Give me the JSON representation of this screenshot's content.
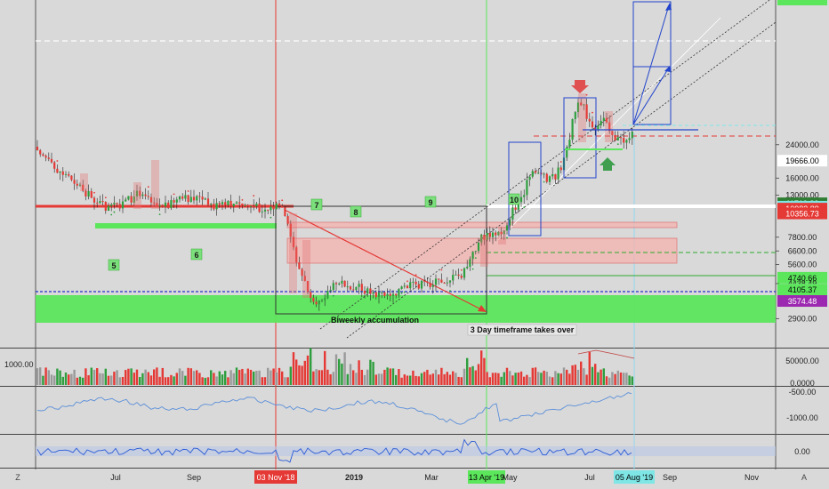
{
  "chart_data": {
    "type": "candlestick",
    "price_axis": {
      "scale": "log",
      "ticks": [
        "24000.00",
        "19666.00",
        "16000.00",
        "13000.00",
        "11719.82",
        "11247.62",
        "10982.89",
        "10356.73",
        "7800.00",
        "6600.00",
        "5600.00",
        "4740.66",
        "4438.49",
        "4105.37",
        "3574.48",
        "2900.00"
      ],
      "tag_colors": {
        "11719.82": "#2e7d32",
        "11247.62": "#7fe6e6",
        "10982.89": "#e53935",
        "10356.73": "#e53935",
        "4740.66": "#5ce65c",
        "4105.37": "#5ce65c",
        "3574.48": "#9c27b0"
      }
    },
    "time_axis": {
      "ticks": [
        "Jul",
        "Sep",
        "03 Nov '18",
        "2019",
        "Mar",
        "13 Apr '19",
        "May",
        "Jul",
        "05 Aug '19",
        "Sep",
        "Nov"
      ]
    },
    "zone_labels": [
      "5",
      "6",
      "7",
      "8",
      "9",
      "10"
    ],
    "annotations": {
      "accumulation": "Biweekly accumulation",
      "timeframe": "3 Day timeframe takes over"
    },
    "volume_pane": {
      "left_scale": "1000.00",
      "ticks": [
        "50000.00",
        "0.0000"
      ]
    },
    "indicator_pane_1": {
      "ticks": [
        "-500.00",
        "-1000.00"
      ]
    },
    "indicator_pane_2": {
      "ticks": [
        "0.00"
      ]
    },
    "corner_labels": {
      "bottom_left": "Z",
      "bottom_right": "A"
    },
    "colors": {
      "up": "#2e9e3e",
      "down": "#e53935",
      "background": "#d9d9d9",
      "support_green": "#5ce65c",
      "resistance_red": "#f4b6b2",
      "projection_blue": "#2244cc",
      "marker_red": "#e05050",
      "marker_green": "#3f9f4f"
    }
  }
}
